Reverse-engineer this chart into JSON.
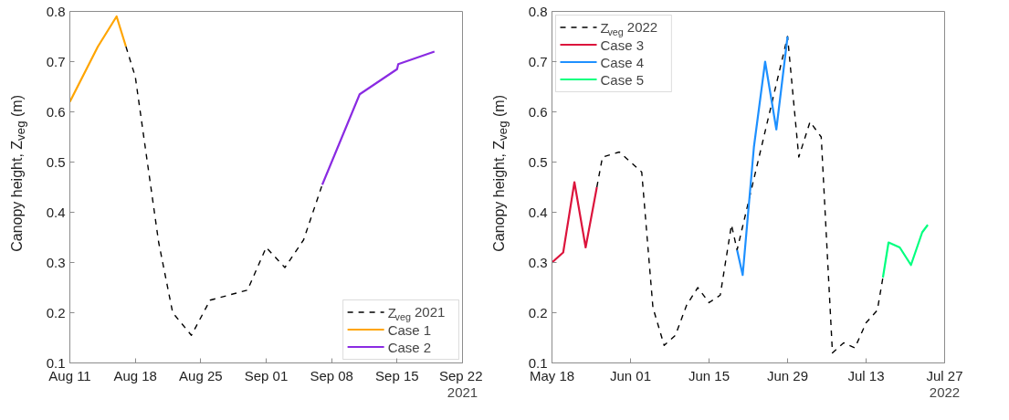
{
  "chart_data": [
    {
      "type": "line",
      "ylabel": "Canopy height, Z$_{veg}$ (m)",
      "legend": "bottom right",
      "grid": false,
      "xlim": [
        "2021-08-11",
        "2021-09-22"
      ],
      "xticks": [
        {
          "value": "2021-08-11",
          "label": "Aug 11"
        },
        {
          "value": "2021-08-18",
          "label": "Aug 18"
        },
        {
          "value": "2021-08-25",
          "label": "Aug 25"
        },
        {
          "value": "2021-09-01",
          "label": "Sep 01"
        },
        {
          "value": "2021-09-08",
          "label": "Sep 08"
        },
        {
          "value": "2021-09-15",
          "label": "Sep 15"
        },
        {
          "value": "2021-09-22",
          "label": "Sep 22"
        }
      ],
      "ylim": [
        0.1,
        0.8
      ],
      "yticks": [
        0.1,
        0.2,
        0.3,
        0.4,
        0.5,
        0.6,
        0.7,
        0.8
      ],
      "annotations": [
        "2021"
      ],
      "series": [
        {
          "name": "Z$_{veg}$ 2021",
          "color": "#000000",
          "line_style": "dashed",
          "x": [
            "2021-08-17",
            "2021-08-18",
            "2021-08-20T12:00",
            "2021-08-22",
            "2021-08-24",
            "2021-08-26",
            "2021-08-30",
            "2021-09-01",
            "2021-09-03",
            "2021-09-05",
            "2021-09-07"
          ],
          "values": [
            0.73,
            0.67,
            0.34,
            0.2,
            0.155,
            0.225,
            0.245,
            0.33,
            0.29,
            0.345,
            0.455
          ]
        },
        {
          "name": "Case 1",
          "color": "#ffa500",
          "line_style": "solid",
          "x": [
            "2021-08-11",
            "2021-08-14",
            "2021-08-16",
            "2021-08-17"
          ],
          "values": [
            0.62,
            0.73,
            0.79,
            0.73
          ]
        },
        {
          "name": "Case 2",
          "color": "#8a2be2",
          "line_style": "solid",
          "x": [
            "2021-09-07",
            "2021-09-11",
            "2021-09-15",
            "2021-09-15T03:00",
            "2021-09-19"
          ],
          "values": [
            0.455,
            0.635,
            0.685,
            0.695,
            0.72
          ]
        }
      ]
    },
    {
      "type": "line",
      "ylabel": "Canopy height, Z$_{veg}$ (m)",
      "legend": "top left",
      "grid": false,
      "xlim": [
        "2022-05-18",
        "2022-07-27"
      ],
      "xticks": [
        {
          "value": "2022-05-18",
          "label": "May 18"
        },
        {
          "value": "2022-06-01",
          "label": "Jun 01"
        },
        {
          "value": "2022-06-15",
          "label": "Jun 15"
        },
        {
          "value": "2022-06-29",
          "label": "Jun 29"
        },
        {
          "value": "2022-07-13",
          "label": "Jul 13"
        },
        {
          "value": "2022-07-27",
          "label": "Jul 27"
        }
      ],
      "ylim": [
        0.1,
        0.8
      ],
      "yticks": [
        0.1,
        0.2,
        0.3,
        0.4,
        0.5,
        0.6,
        0.7,
        0.8
      ],
      "annotations": [
        "2022"
      ],
      "series": [
        {
          "name": "Z$_{veg}$ 2022",
          "color": "#000000",
          "line_style": "dashed",
          "x": [
            "2022-05-26",
            "2022-05-27",
            "2022-05-30",
            "2022-06-01",
            "2022-06-03",
            "2022-06-05",
            "2022-06-07",
            "2022-06-09",
            "2022-06-11",
            "2022-06-13",
            "2022-06-15",
            "2022-06-17",
            "2022-06-19",
            "2022-06-20",
            "2022-06-29",
            "2022-07-01",
            "2022-07-03",
            "2022-07-05",
            "2022-07-07",
            "2022-07-09",
            "2022-07-11",
            "2022-07-13",
            "2022-07-15",
            "2022-07-16"
          ],
          "values": [
            0.45,
            0.51,
            0.52,
            0.5,
            0.48,
            0.21,
            0.135,
            0.155,
            0.215,
            0.25,
            0.22,
            0.235,
            0.375,
            0.325,
            0.75,
            0.51,
            0.58,
            0.55,
            0.12,
            0.14,
            0.13,
            0.18,
            0.205,
            0.27
          ]
        },
        {
          "name": "Case 3",
          "color": "#dc143c",
          "line_style": "solid",
          "x": [
            "2022-05-18",
            "2022-05-20",
            "2022-05-22",
            "2022-05-24",
            "2022-05-26"
          ],
          "values": [
            0.3,
            0.32,
            0.46,
            0.33,
            0.45
          ]
        },
        {
          "name": "Case 4",
          "color": "#1e90ff",
          "line_style": "solid",
          "x": [
            "2022-06-20",
            "2022-06-21",
            "2022-06-23",
            "2022-06-25",
            "2022-06-27",
            "2022-06-29"
          ],
          "values": [
            0.325,
            0.275,
            0.53,
            0.7,
            0.565,
            0.75
          ]
        },
        {
          "name": "Case 5",
          "color": "#00ff7f",
          "line_style": "solid",
          "x": [
            "2022-07-16",
            "2022-07-17",
            "2022-07-19",
            "2022-07-21",
            "2022-07-23",
            "2022-07-24"
          ],
          "values": [
            0.27,
            0.34,
            0.33,
            0.295,
            0.36,
            0.375
          ]
        }
      ]
    }
  ]
}
